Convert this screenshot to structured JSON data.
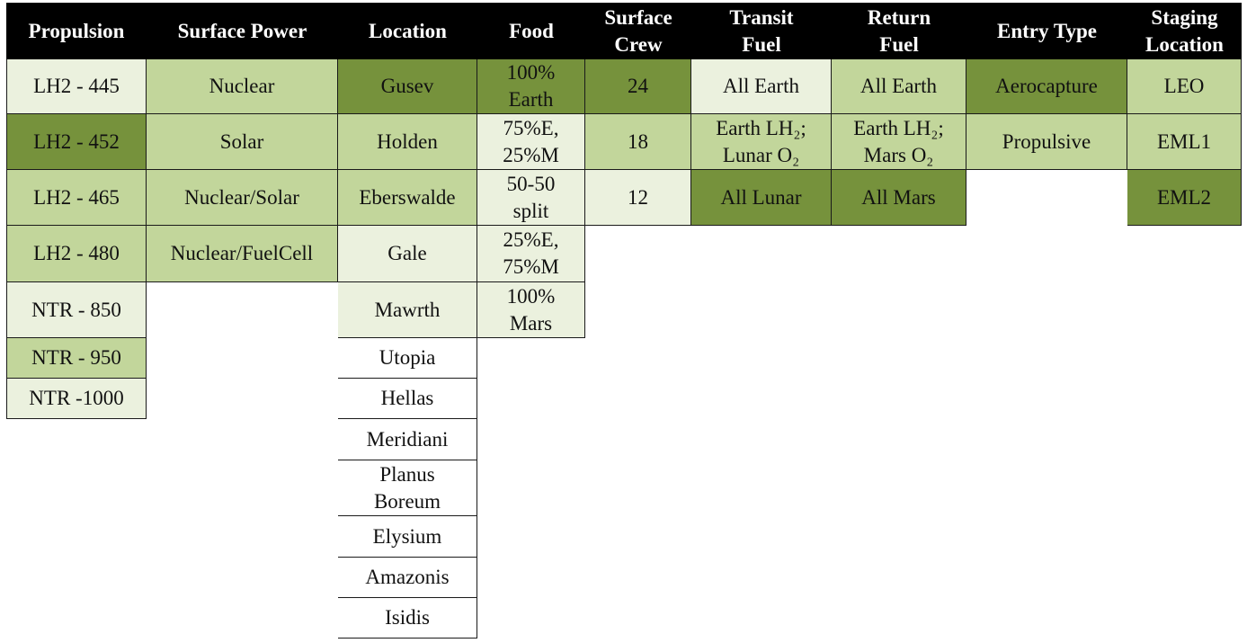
{
  "colors": {
    "header_bg": "#000000",
    "header_text": "#ffffff",
    "dark": "#76923c",
    "medium": "#c2d69b",
    "light": "#ebf1de",
    "white": "#ffffff",
    "border": "#1a1a1a"
  },
  "table": {
    "columns": [
      {
        "header": "Propulsion",
        "cells": [
          {
            "text": "LH2 - 445",
            "shade": "light"
          },
          {
            "text": "LH2 - 452",
            "shade": "dark"
          },
          {
            "text": "LH2 - 465",
            "shade": "medium"
          },
          {
            "text": "LH2 - 480",
            "shade": "medium"
          },
          {
            "text": "NTR - 850",
            "shade": "light"
          },
          {
            "text": "NTR - 950",
            "shade": "medium"
          },
          {
            "text": "NTR -1000",
            "shade": "light"
          }
        ]
      },
      {
        "header": "Surface Power",
        "cells": [
          {
            "text": "Nuclear",
            "shade": "medium"
          },
          {
            "text": "Solar",
            "shade": "medium"
          },
          {
            "text": "Nuclear/Solar",
            "shade": "medium"
          },
          {
            "text": "Nuclear/FuelCell",
            "shade": "medium"
          }
        ]
      },
      {
        "header": "Location",
        "cells": [
          {
            "text": "Gusev",
            "shade": "dark"
          },
          {
            "text": "Holden",
            "shade": "medium"
          },
          {
            "text": "Eberswalde",
            "shade": "medium"
          },
          {
            "text": "Gale",
            "shade": "light"
          },
          {
            "text": "Mawrth",
            "shade": "light"
          },
          {
            "text": "Utopia",
            "shade": "white"
          },
          {
            "text": "Hellas",
            "shade": "white"
          },
          {
            "text": "Meridiani",
            "shade": "white"
          },
          {
            "text": "Planus\nBoreum",
            "shade": "white"
          },
          {
            "text": "Elysium",
            "shade": "white"
          },
          {
            "text": "Amazonis",
            "shade": "white"
          },
          {
            "text": "Isidis",
            "shade": "white"
          }
        ]
      },
      {
        "header": "Food",
        "cells": [
          {
            "text": "100%\nEarth",
            "shade": "dark"
          },
          {
            "text": "75%E,\n25%M",
            "shade": "light"
          },
          {
            "text": "50-50\nsplit",
            "shade": "light"
          },
          {
            "text": "25%E,\n75%M",
            "shade": "light"
          },
          {
            "text": "100%\nMars",
            "shade": "light"
          }
        ]
      },
      {
        "header": "Surface\nCrew",
        "cells": [
          {
            "text": "24",
            "shade": "dark"
          },
          {
            "text": "18",
            "shade": "medium"
          },
          {
            "text": "12",
            "shade": "light"
          }
        ]
      },
      {
        "header": "Transit\nFuel",
        "cells": [
          {
            "text": "All Earth",
            "shade": "light"
          },
          {
            "text": "Earth LH₂;\nLunar O₂",
            "shade": "medium"
          },
          {
            "text": "All Lunar",
            "shade": "dark"
          }
        ]
      },
      {
        "header": "Return\nFuel",
        "cells": [
          {
            "text": "All Earth",
            "shade": "medium"
          },
          {
            "text": "Earth LH₂;\nMars O₂",
            "shade": "medium"
          },
          {
            "text": "All Mars",
            "shade": "dark"
          }
        ]
      },
      {
        "header": "Entry Type",
        "cells": [
          {
            "text": "Aerocapture",
            "shade": "dark"
          },
          {
            "text": "Propulsive",
            "shade": "medium"
          }
        ]
      },
      {
        "header": "Staging\nLocation",
        "cells": [
          {
            "text": "LEO",
            "shade": "medium"
          },
          {
            "text": "EML1",
            "shade": "medium"
          },
          {
            "text": "EML2",
            "shade": "dark"
          }
        ]
      }
    ]
  }
}
